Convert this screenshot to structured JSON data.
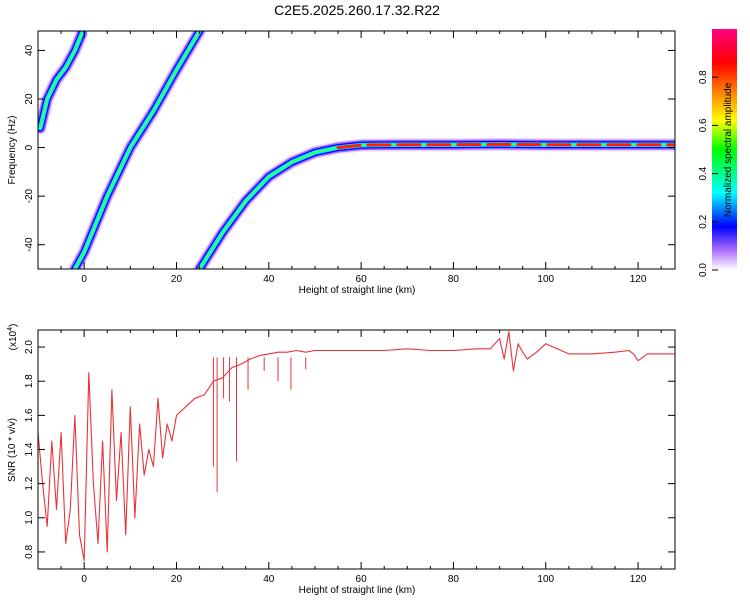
{
  "title": "C2E5.2025.260.17.32.R22",
  "chart_data": [
    {
      "type": "heatmap",
      "xlabel": "Height of straight line (km)",
      "ylabel": "Frequency (Hz)",
      "xlim": [
        -10,
        128
      ],
      "ylim": [
        -50,
        48
      ],
      "xticks": [
        0,
        20,
        40,
        60,
        80,
        100,
        120
      ],
      "xtick_labels": [
        "0",
        "20",
        "40",
        "60",
        "80",
        "100",
        "120"
      ],
      "yticks": [
        -40,
        -20,
        0,
        20,
        40
      ],
      "ytick_labels": [
        "-40",
        "-20",
        "0",
        "20",
        "40"
      ],
      "grid": false,
      "traces": [
        {
          "x": [
            -9.5,
            -8,
            -6,
            -4,
            -2,
            -0.5
          ],
          "y": [
            8,
            20,
            28,
            33,
            40,
            47
          ]
        },
        {
          "x": [
            -2,
            0,
            5,
            10,
            15,
            20,
            25
          ],
          "y": [
            -50,
            -43,
            -20,
            0,
            15,
            32,
            48
          ]
        },
        {
          "x": [
            25,
            30,
            35,
            40,
            45,
            50,
            55,
            60,
            70,
            80,
            90,
            100,
            110,
            120,
            128
          ],
          "y": [
            -50,
            -35,
            -22,
            -12,
            -6,
            -2,
            0,
            1,
            1.2,
            1.2,
            1.3,
            1.2,
            1.2,
            1.2,
            1.2
          ]
        }
      ],
      "colorbar": {
        "label": "Normalized spectral amplitude",
        "ticks": [
          0.0,
          0.2,
          0.4,
          0.6,
          0.8
        ],
        "tick_labels": [
          "0.0",
          "0.2",
          "0.4",
          "0.6",
          "0.8"
        ],
        "range": [
          0,
          1
        ],
        "colors": [
          "#ffffff",
          "#8000ff",
          "#0000ff",
          "#00ffff",
          "#00ff00",
          "#ffff00",
          "#ff8000",
          "#ff0000",
          "#ff0080"
        ]
      }
    },
    {
      "type": "line",
      "xlabel": "Height of straight line (km)",
      "ylabel": "SNR (10 * v/v)",
      "scale_note": "(x10",
      "scale_exp": "4",
      "xlim": [
        -10,
        128
      ],
      "ylim": [
        0.7,
        2.1
      ],
      "xticks": [
        0,
        20,
        40,
        60,
        80,
        100,
        120
      ],
      "xtick_labels": [
        "0",
        "20",
        "40",
        "60",
        "80",
        "100",
        "120"
      ],
      "yticks": [
        0.8,
        1.0,
        1.2,
        1.4,
        1.6,
        1.8,
        2.0
      ],
      "ytick_labels": [
        "0.8",
        "1.0",
        "1.2",
        "1.4",
        "1.6",
        "1.8",
        "2.0"
      ],
      "grid": false,
      "line_color": "#e8333a",
      "series": [
        {
          "x": [
            -10,
            -9,
            -8,
            -7,
            -6,
            -5,
            -4,
            -3,
            -2,
            -1,
            0,
            1,
            2,
            3,
            4,
            5,
            6,
            7,
            8,
            9,
            10,
            11,
            12,
            13,
            14,
            15,
            16,
            17,
            18,
            19,
            20,
            22,
            24,
            26,
            28,
            30,
            32,
            34,
            36,
            38,
            40,
            42,
            44,
            46,
            48,
            50,
            55,
            60,
            65,
            70,
            75,
            80,
            85,
            88,
            90,
            91,
            92,
            93,
            94,
            95,
            96,
            98,
            100,
            105,
            110,
            115,
            118,
            119,
            120,
            122,
            125,
            128
          ],
          "y": [
            1.5,
            1.2,
            0.95,
            1.45,
            1.05,
            1.5,
            0.85,
            1.05,
            1.6,
            0.9,
            0.75,
            1.85,
            1.2,
            0.85,
            1.45,
            0.8,
            1.75,
            1.1,
            1.5,
            0.9,
            1.65,
            1.0,
            1.55,
            1.25,
            1.4,
            1.3,
            1.7,
            1.35,
            1.55,
            1.45,
            1.6,
            1.65,
            1.7,
            1.72,
            1.8,
            1.82,
            1.88,
            1.9,
            1.93,
            1.95,
            1.96,
            1.97,
            1.97,
            1.98,
            1.97,
            1.98,
            1.98,
            1.98,
            1.98,
            1.99,
            1.98,
            1.98,
            1.99,
            1.99,
            2.05,
            1.93,
            2.09,
            1.86,
            2.02,
            1.97,
            1.93,
            1.97,
            2.02,
            1.96,
            1.96,
            1.97,
            1.98,
            1.96,
            1.92,
            1.96,
            1.96,
            1.96
          ]
        }
      ],
      "dropouts": [
        {
          "x": 28.0,
          "y": 1.3
        },
        {
          "x": 28.8,
          "y": 1.15
        },
        {
          "x": 30.2,
          "y": 1.7
        },
        {
          "x": 31.5,
          "y": 1.68
        },
        {
          "x": 33.0,
          "y": 1.33
        },
        {
          "x": 35.5,
          "y": 1.75
        },
        {
          "x": 39.0,
          "y": 1.86
        },
        {
          "x": 42.0,
          "y": 1.8
        },
        {
          "x": 44.8,
          "y": 1.75
        },
        {
          "x": 48.0,
          "y": 1.87
        }
      ]
    }
  ]
}
